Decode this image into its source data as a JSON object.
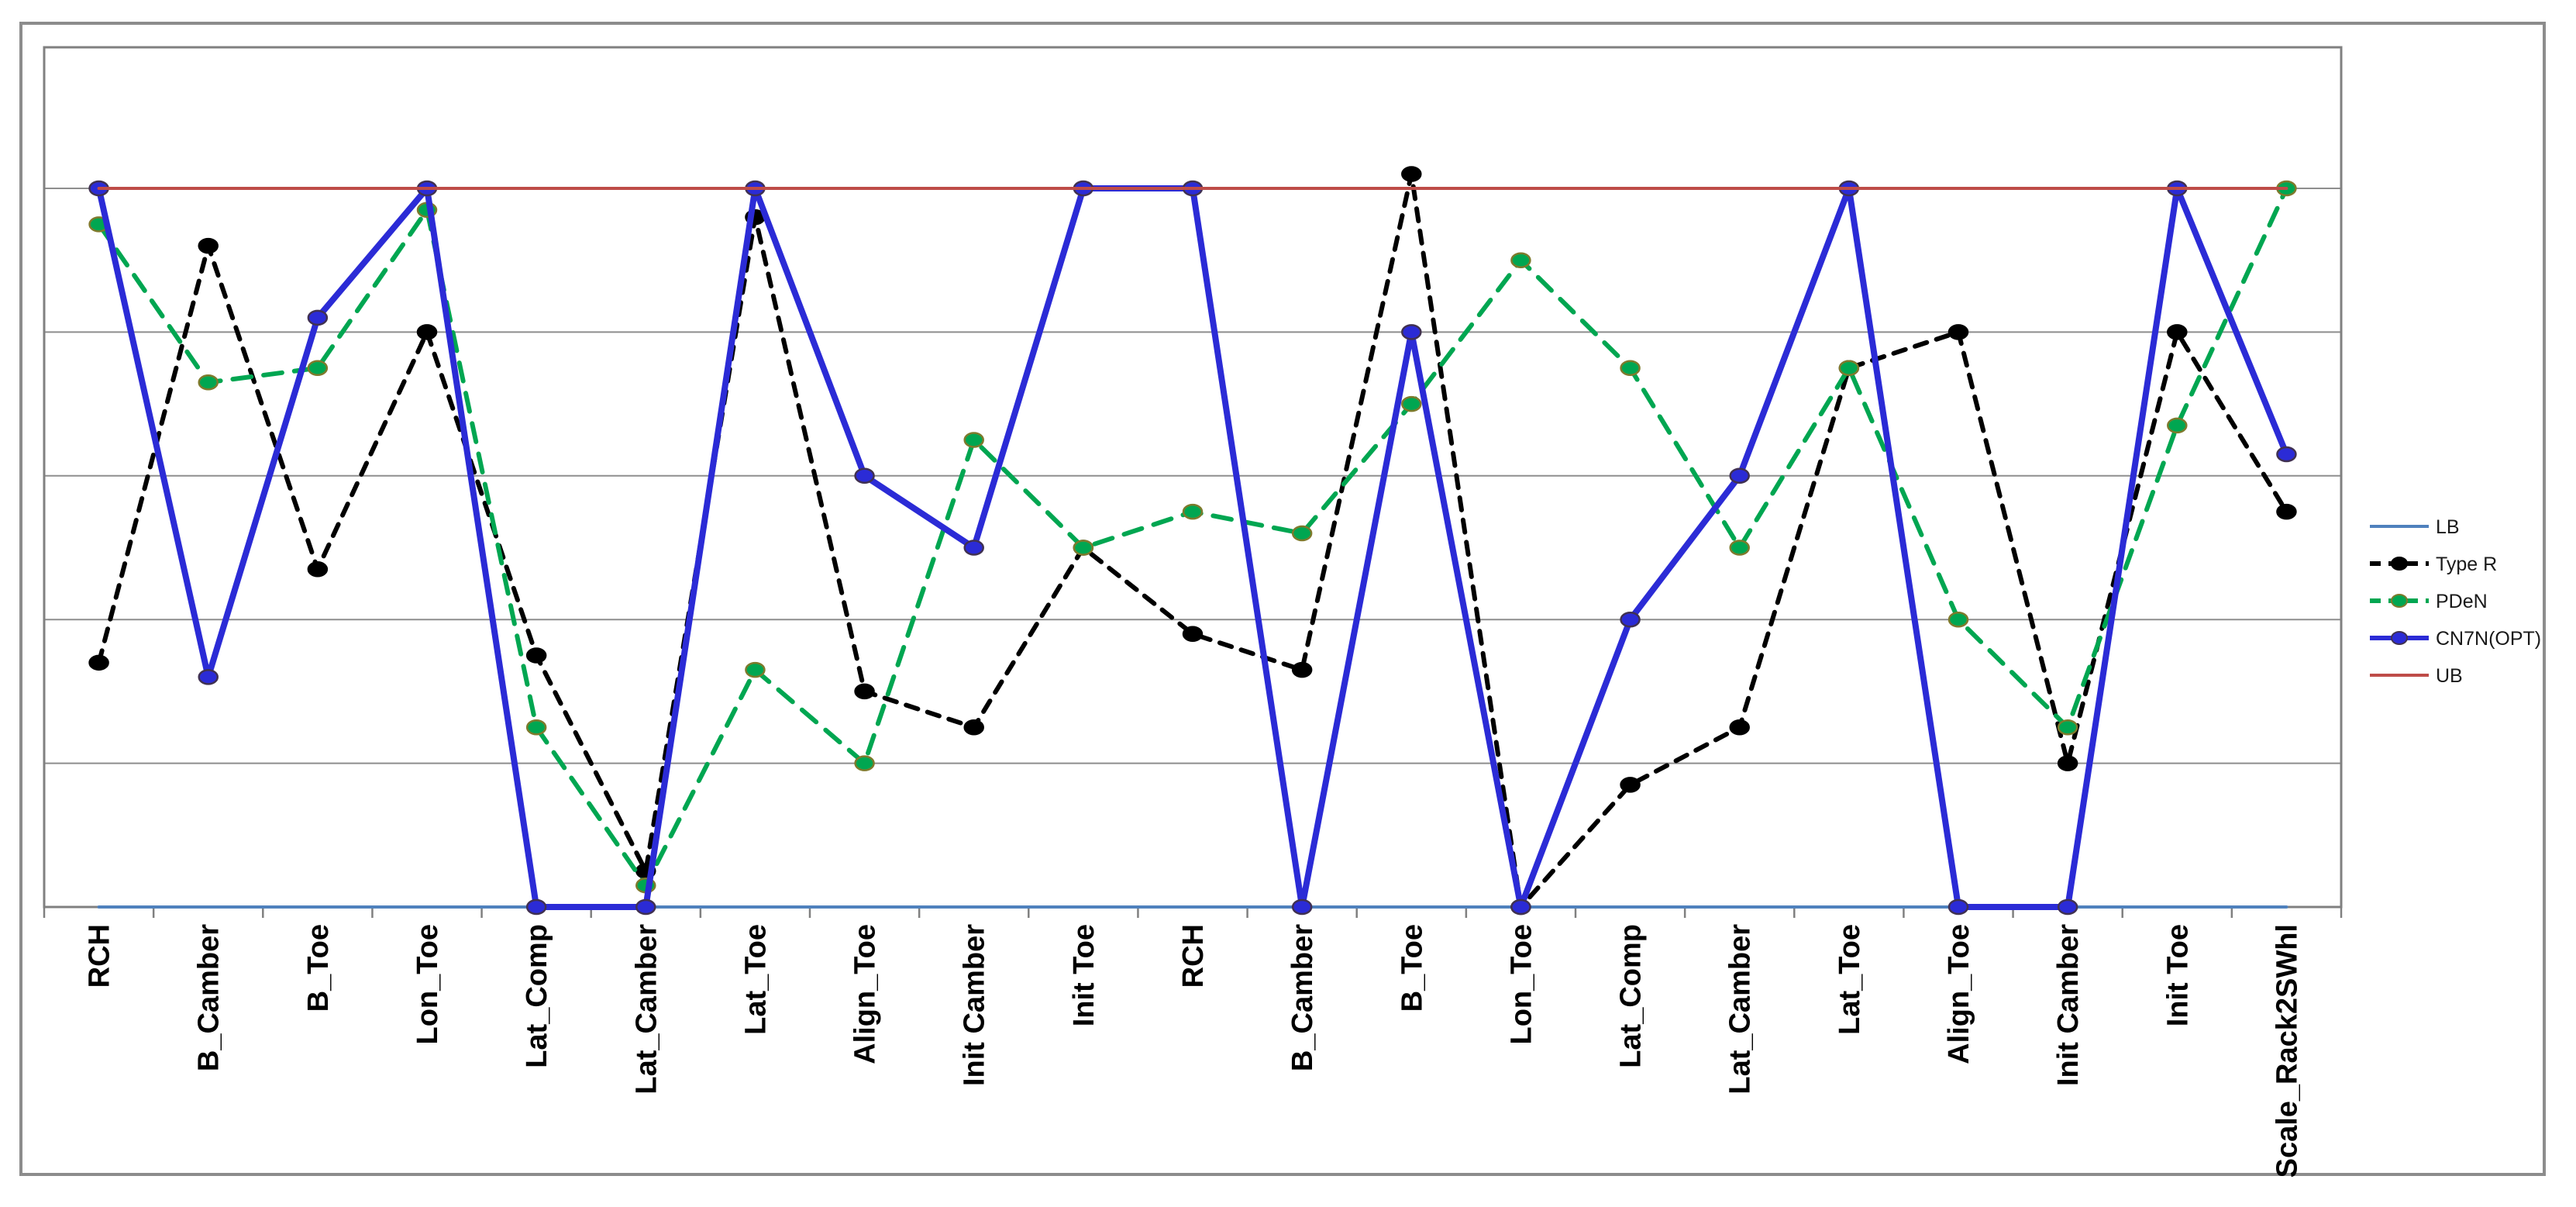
{
  "chart": {
    "background": "#ffffff",
    "outer_border_color": "#8c8c8c",
    "plot_border_color": "#808080",
    "gridline_color": "#8e8e8e",
    "axis_color": "#808080",
    "tick_color": "#808080",
    "label_color": "#000000",
    "legend_text_color": "#1a1a1a"
  },
  "chart_data": {
    "type": "line",
    "title": "",
    "xlabel": "",
    "ylabel": "",
    "grid": true,
    "legend_position": "right",
    "ylim": [
      0,
      1.2
    ],
    "gridline_step": 0.2,
    "y_tick_labels_shown": false,
    "categories": [
      "RCH",
      "B_Camber",
      "B_Toe",
      "Lon_Toe",
      "Lat_Comp",
      "Lat_Camber",
      "Lat_Toe",
      "Align_Toe",
      "Init Camber",
      "Init Toe",
      "RCH",
      "B_Camber",
      "B_Toe",
      "Lon_Toe",
      "Lat_Comp",
      "Lat_Camber",
      "Lat_Toe",
      "Align_Toe",
      "Init Camber",
      "Init Toe",
      "Scale_Rack2SWhl"
    ],
    "series": [
      {
        "name": "LB",
        "color": "#4F81BD",
        "style": "solid",
        "width": 4,
        "marker": false,
        "values": [
          0,
          0,
          0,
          0,
          0,
          0,
          0,
          0,
          0,
          0,
          0,
          0,
          0,
          0,
          0,
          0,
          0,
          0,
          0,
          0,
          0
        ]
      },
      {
        "name": "Type R",
        "color": "#000000",
        "style": "dashed",
        "width": 6,
        "marker": true,
        "marker_fill": "#000000",
        "marker_stroke": "#000000",
        "values": [
          0.34,
          0.92,
          0.47,
          0.8,
          0.35,
          0.05,
          0.96,
          0.3,
          0.25,
          0.5,
          0.38,
          0.33,
          1.02,
          0.0,
          0.17,
          0.25,
          0.75,
          0.8,
          0.2,
          0.8,
          0.55
        ]
      },
      {
        "name": "PDeN",
        "color": "#00A651",
        "style": "dashed",
        "width": 6,
        "marker": true,
        "marker_fill": "#00A651",
        "marker_stroke": "#7e7a2c",
        "values": [
          0.95,
          0.73,
          0.75,
          0.97,
          0.25,
          0.03,
          0.33,
          0.2,
          0.65,
          0.5,
          0.55,
          0.52,
          0.7,
          0.9,
          0.75,
          0.5,
          0.75,
          0.4,
          0.25,
          0.67,
          1.0
        ]
      },
      {
        "name": "CN7N(OPT)",
        "color": "#2B2BD6",
        "style": "solid",
        "width": 8,
        "marker": true,
        "marker_fill": "#2B2BD6",
        "marker_stroke": "#403152",
        "values": [
          1.0,
          0.32,
          0.82,
          1.0,
          0.0,
          0.0,
          1.0,
          0.6,
          0.5,
          1.0,
          1.0,
          0.0,
          0.8,
          0.0,
          0.4,
          0.6,
          1.0,
          0.0,
          0.0,
          1.0,
          0.63
        ]
      },
      {
        "name": "UB",
        "color": "#BE4C48",
        "style": "solid",
        "width": 4,
        "marker": false,
        "values": [
          1,
          1,
          1,
          1,
          1,
          1,
          1,
          1,
          1,
          1,
          1,
          1,
          1,
          1,
          1,
          1,
          1,
          1,
          1,
          1,
          1
        ]
      }
    ]
  }
}
